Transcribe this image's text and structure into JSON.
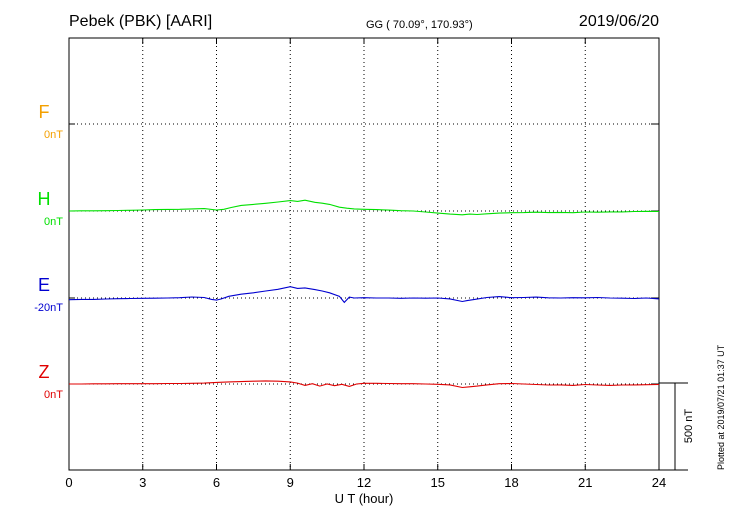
{
  "header": {
    "station": "Pebek (PBK)  [AARI]",
    "coords": "GG ( 70.09°, 170.93°)",
    "date": "2019/06/20"
  },
  "footer": {
    "plotted": "Plotted at 2019/07/21 01:37 UT"
  },
  "chart_data": {
    "type": "line",
    "title": "",
    "xlabel": "U T (hour)",
    "ylabel": "",
    "xlim": [
      0,
      24
    ],
    "x_ticks": [
      0,
      3,
      6,
      9,
      12,
      15,
      18,
      21,
      24
    ],
    "x_tick_labels": [
      "0",
      "3",
      "6",
      "9",
      "12",
      "15",
      "18",
      "21",
      "24"
    ],
    "grid": true,
    "scale_bar": {
      "label": "500 nT",
      "value_nT": 500
    },
    "units": "nT",
    "series": [
      {
        "name": "F",
        "baseline_label": "0nT",
        "color": "#f4a000",
        "x": [],
        "y": []
      },
      {
        "name": "H",
        "baseline_label": "0nT",
        "color": "#00e000",
        "x": [
          0,
          0.5,
          1,
          1.5,
          2,
          2.5,
          3,
          3.5,
          4,
          4.5,
          5,
          5.5,
          6,
          6.3,
          6.6,
          7,
          7.5,
          8,
          8.5,
          9,
          9.3,
          9.6,
          10,
          10.3,
          10.6,
          11,
          11.3,
          11.6,
          12,
          12.5,
          13,
          13.5,
          14,
          14.5,
          15,
          15.5,
          16,
          16.3,
          16.6,
          17,
          17.5,
          18,
          18.5,
          19,
          19.5,
          20,
          20.5,
          21,
          21.5,
          22,
          22.5,
          23,
          23.5,
          24
        ],
        "y": [
          0,
          1,
          1,
          2,
          3,
          4,
          6,
          8,
          9,
          10,
          12,
          14,
          6,
          10,
          20,
          32,
          38,
          44,
          52,
          60,
          55,
          62,
          50,
          45,
          38,
          22,
          16,
          12,
          10,
          8,
          5,
          2,
          0,
          -6,
          -12,
          -18,
          -22,
          -18,
          -20,
          -16,
          -12,
          -10,
          -9,
          -7,
          -9,
          -8,
          -10,
          -6,
          -7,
          -5,
          -5,
          -3,
          -2,
          -3
        ]
      },
      {
        "name": "E",
        "baseline_label": "-20nT",
        "color": "#0000d0",
        "x": [
          0,
          0.5,
          1,
          1.5,
          2,
          2.5,
          3,
          3.5,
          4,
          4.5,
          5,
          5.5,
          5.8,
          6,
          6.2,
          6.5,
          7,
          7.5,
          8,
          8.5,
          9,
          9.3,
          9.6,
          10,
          10.3,
          10.6,
          11,
          11.2,
          11.4,
          11.6,
          12,
          12.5,
          13,
          13.5,
          14,
          14.5,
          15,
          15.5,
          16,
          16.2,
          16.5,
          17,
          17.5,
          18,
          18.5,
          19,
          19.5,
          20,
          20.5,
          21,
          21.5,
          22,
          22.5,
          23,
          23.5,
          24
        ],
        "y": [
          -10,
          -8,
          -8,
          -6,
          -4,
          -3,
          -2,
          -1,
          0,
          2,
          6,
          3,
          -8,
          -12,
          -5,
          10,
          22,
          30,
          40,
          50,
          65,
          55,
          58,
          48,
          40,
          30,
          10,
          -25,
          5,
          0,
          2,
          0,
          0,
          -2,
          0,
          -1,
          0,
          -5,
          -20,
          -15,
          -8,
          3,
          8,
          2,
          3,
          5,
          1,
          0,
          2,
          1,
          3,
          0,
          -1,
          -3,
          0,
          -5
        ]
      },
      {
        "name": "Z",
        "baseline_label": "0nT",
        "color": "#e00000",
        "x": [
          0,
          0.5,
          1,
          1.5,
          2,
          2.5,
          3,
          3.5,
          4,
          4.5,
          5,
          5.5,
          6,
          6.5,
          7,
          7.5,
          8,
          8.5,
          9,
          9.3,
          9.6,
          9.9,
          10.2,
          10.5,
          10.8,
          11.1,
          11.4,
          11.7,
          12,
          12.5,
          13,
          13.5,
          14,
          14.5,
          15,
          15.5,
          16,
          16.3,
          16.6,
          17,
          17.5,
          18,
          18.5,
          19,
          19.5,
          20,
          20.5,
          21,
          21.5,
          22,
          22.5,
          23,
          23.5,
          24
        ],
        "y": [
          0,
          0,
          1,
          1,
          2,
          2,
          2,
          2,
          3,
          3,
          4,
          5,
          9,
          12,
          14,
          16,
          18,
          16,
          12,
          5,
          -8,
          2,
          -12,
          0,
          -10,
          -2,
          -14,
          0,
          4,
          4,
          3,
          2,
          2,
          0,
          -2,
          -5,
          -20,
          -16,
          -12,
          -5,
          2,
          3,
          0,
          -3,
          -6,
          -5,
          -8,
          -3,
          -6,
          -8,
          -6,
          -5,
          -4,
          -3
        ]
      }
    ]
  }
}
